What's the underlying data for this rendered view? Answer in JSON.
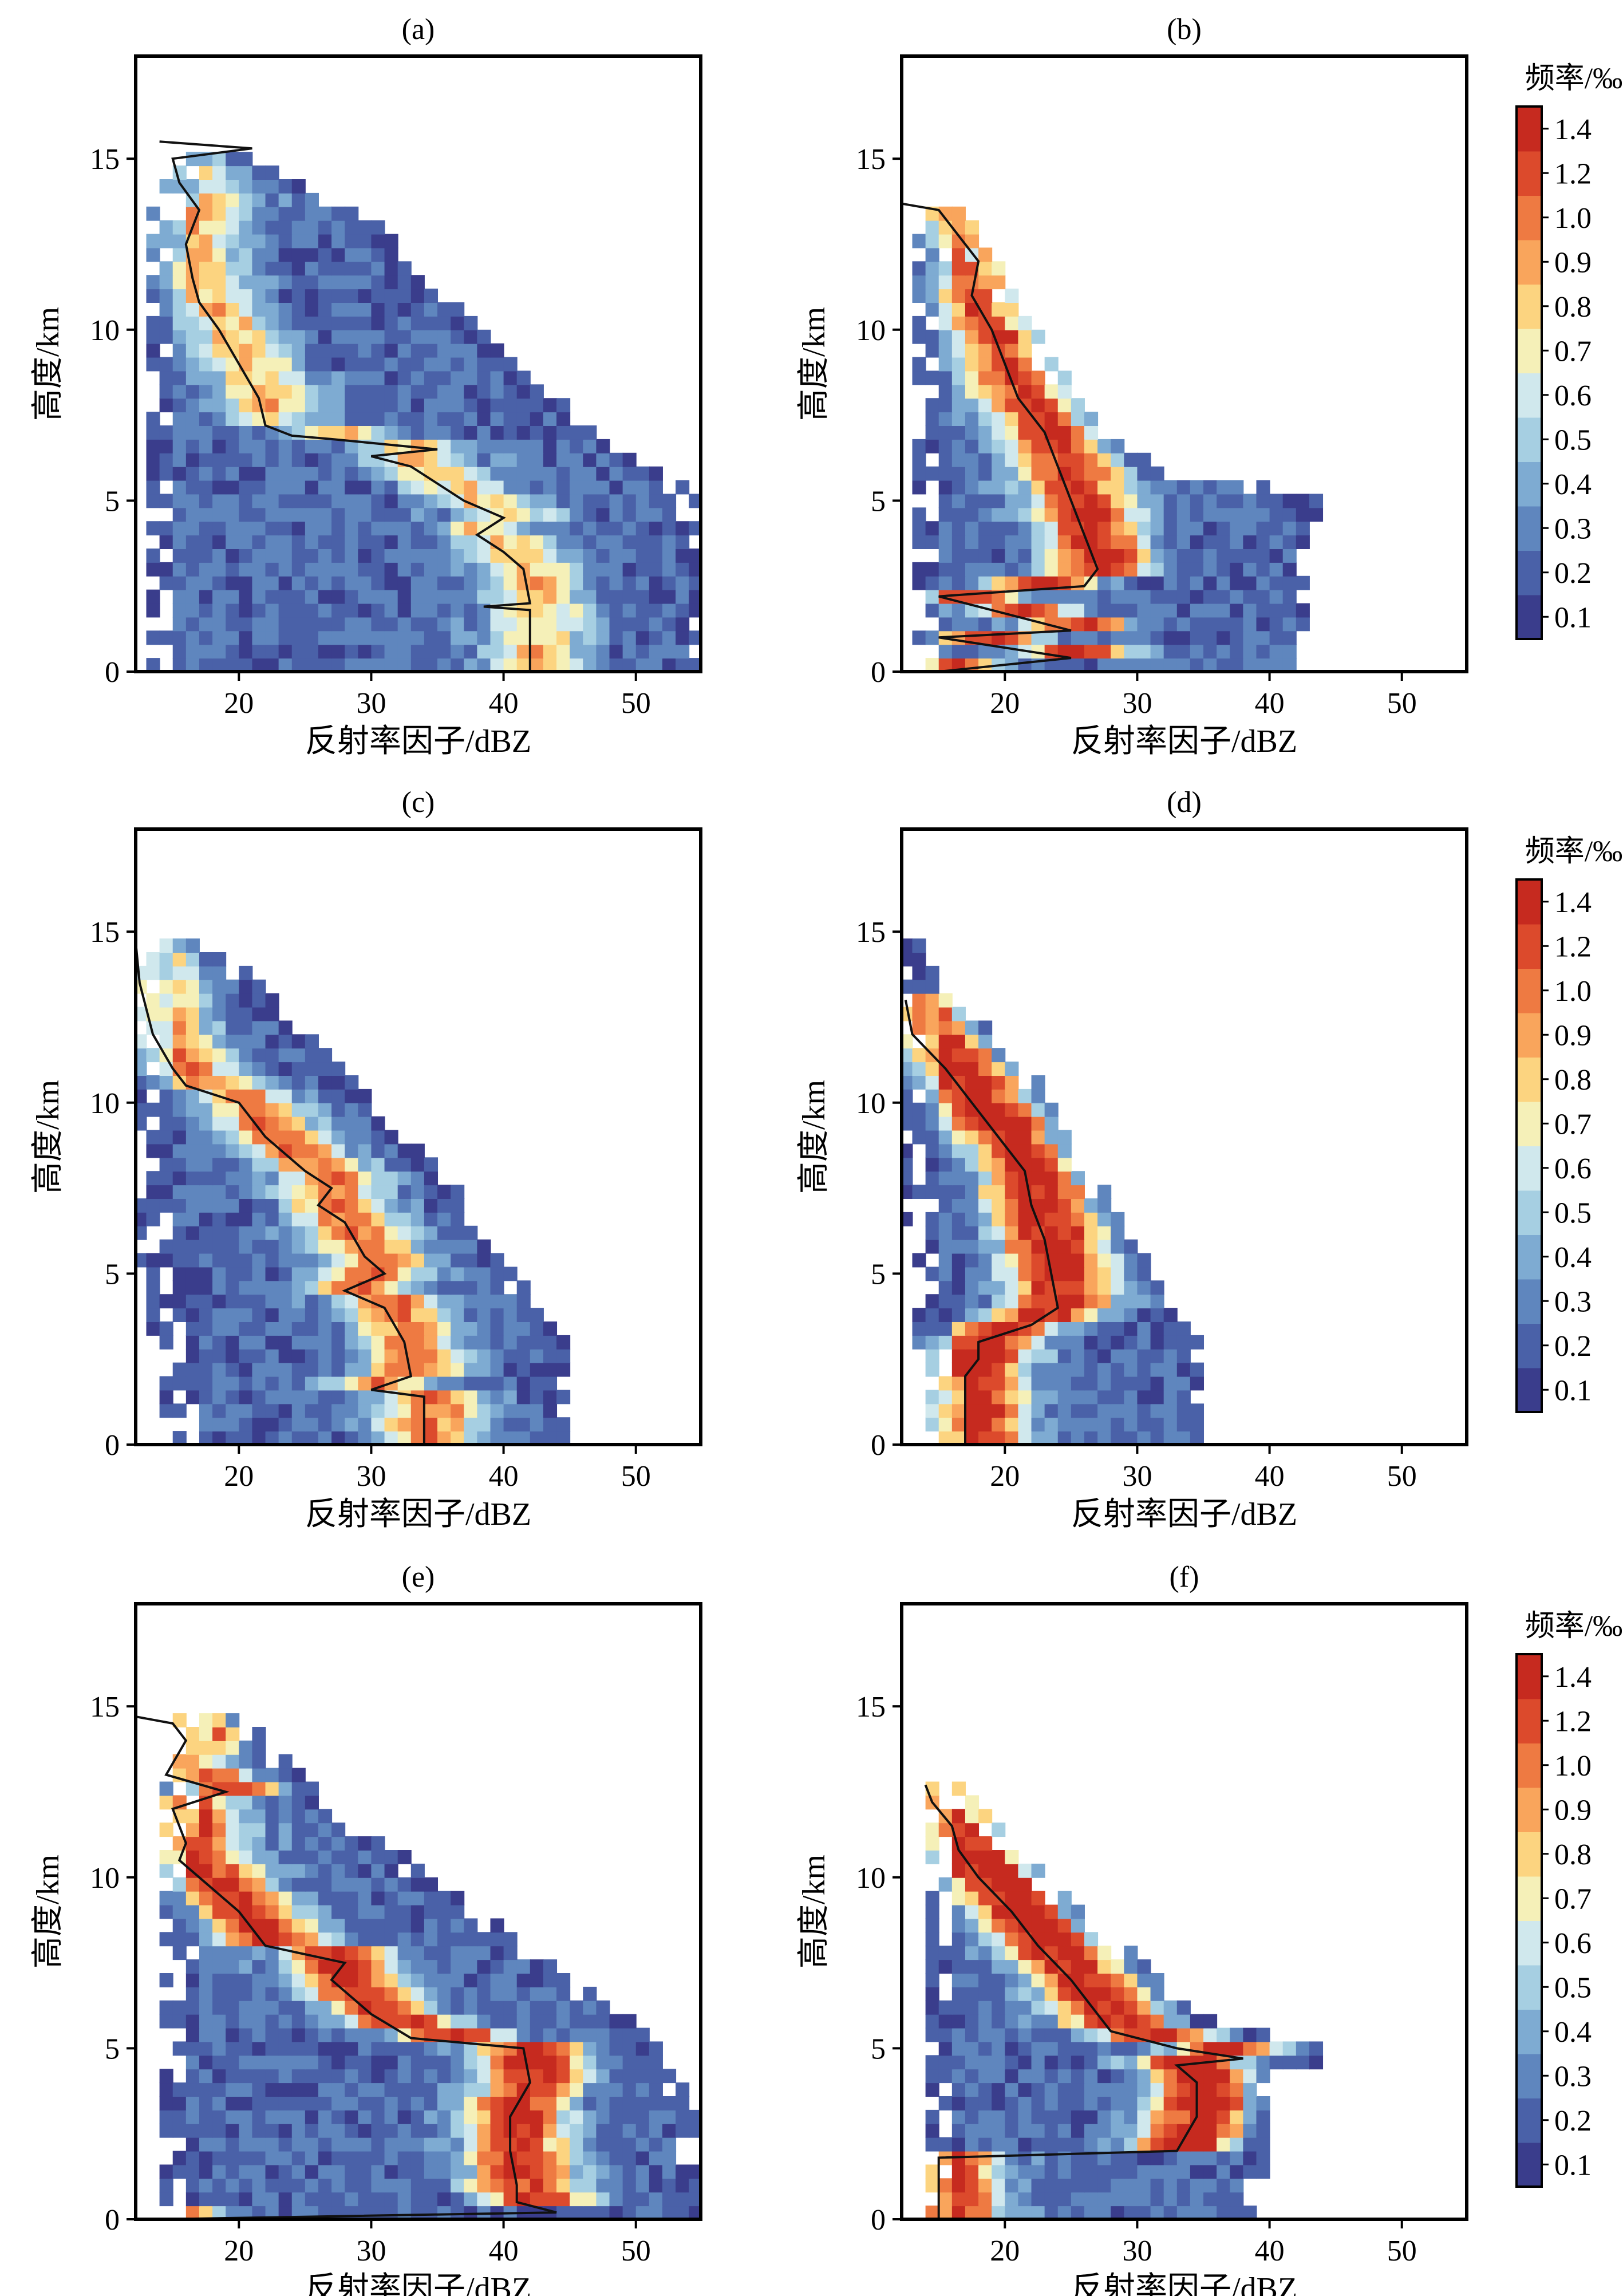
{
  "chart_data": {
    "type": "heatmap",
    "description_axes": {
      "xlabel": "反射率因子/dBZ",
      "ylabel": "高度/km"
    },
    "xlim": [
      12.2,
      54.9
    ],
    "ylim": [
      0,
      18
    ],
    "xticks": [
      20,
      30,
      40,
      50
    ],
    "yticks": [
      0,
      5,
      10,
      15
    ],
    "colorbar": {
      "label": "频率/‰",
      "ticks": [
        "1.4",
        "1.2",
        "1.0",
        "0.9",
        "0.8",
        "0.7",
        "0.6",
        "0.5",
        "0.4",
        "0.3",
        "0.2",
        "0.1"
      ],
      "levels": [
        0.1,
        0.2,
        0.3,
        0.4,
        0.5,
        0.6,
        0.7,
        0.8,
        0.9,
        1.0,
        1.2,
        1.4
      ],
      "colors": [
        "#3a3d8c",
        "#4a61a8",
        "#5f86be",
        "#7eabd2",
        "#a6cfe2",
        "#d0e8ed",
        "#f5f0b8",
        "#fcd480",
        "#f9a55c",
        "#ee7a42",
        "#dc4a2c",
        "#c62a1f"
      ]
    },
    "panels": [
      {
        "title": "(a)",
        "peak": 0.65,
        "median": [
          [
            0,
            42
          ],
          [
            1.8,
            42
          ],
          [
            1.9,
            38.5
          ],
          [
            2.0,
            42
          ],
          [
            3,
            41.5
          ],
          [
            3.5,
            40
          ],
          [
            4,
            38
          ],
          [
            4.5,
            40
          ],
          [
            5,
            37
          ],
          [
            5.5,
            35
          ],
          [
            6,
            33
          ],
          [
            6.3,
            30
          ],
          [
            6.5,
            35
          ],
          [
            6.8,
            27
          ],
          [
            6.9,
            24
          ],
          [
            7.2,
            22
          ],
          [
            8,
            21.5
          ],
          [
            9,
            20
          ],
          [
            10,
            18.5
          ],
          [
            10.8,
            17
          ],
          [
            11.5,
            16.5
          ],
          [
            12.5,
            16
          ],
          [
            13.5,
            17
          ],
          [
            14.3,
            15.5
          ],
          [
            15,
            15
          ],
          [
            15.3,
            21
          ],
          [
            15.5,
            14
          ]
        ],
        "envelope": [
          [
            0,
            13,
            55
          ],
          [
            3,
            13,
            55
          ],
          [
            5,
            13,
            54
          ],
          [
            6,
            13,
            50
          ],
          [
            8,
            13,
            43
          ],
          [
            10,
            13,
            38
          ],
          [
            12,
            13,
            33
          ],
          [
            13.5,
            14,
            28
          ],
          [
            14.5,
            15,
            22
          ],
          [
            15,
            16,
            19
          ]
        ]
      },
      {
        "title": "(b)",
        "peak": 1.25,
        "median": [
          [
            0,
            15
          ],
          [
            0.4,
            25
          ],
          [
            1.0,
            15
          ],
          [
            1.2,
            25
          ],
          [
            2.2,
            15
          ],
          [
            2.5,
            26
          ],
          [
            3,
            27
          ],
          [
            4,
            26
          ],
          [
            5,
            25
          ],
          [
            6,
            24
          ],
          [
            7,
            23
          ],
          [
            8,
            21
          ],
          [
            9,
            20
          ],
          [
            10,
            19
          ],
          [
            11,
            17.5
          ],
          [
            12,
            18
          ],
          [
            13,
            16
          ],
          [
            13.5,
            15
          ],
          [
            13.7,
            12
          ]
        ],
        "envelope": [
          [
            0,
            13,
            43
          ],
          [
            3,
            13,
            43
          ],
          [
            5,
            13,
            44
          ],
          [
            5.5,
            13,
            32
          ],
          [
            7,
            13,
            27
          ],
          [
            9,
            13,
            23
          ],
          [
            11,
            13,
            20
          ],
          [
            12.5,
            14,
            18
          ],
          [
            13.4,
            15,
            17
          ]
        ]
      },
      {
        "title": "(c)",
        "peak": 0.9,
        "median": [
          [
            0,
            34
          ],
          [
            1.4,
            34
          ],
          [
            1.6,
            30
          ],
          [
            2,
            33
          ],
          [
            3,
            32.5
          ],
          [
            4,
            31
          ],
          [
            4.5,
            28
          ],
          [
            5,
            31
          ],
          [
            5.5,
            29.5
          ],
          [
            6.5,
            28
          ],
          [
            7,
            26
          ],
          [
            7.5,
            27
          ],
          [
            8,
            25
          ],
          [
            9,
            22
          ],
          [
            10,
            20
          ],
          [
            10.5,
            16
          ],
          [
            11,
            15
          ],
          [
            12,
            13.5
          ],
          [
            13.5,
            12.5
          ],
          [
            14.7,
            12.2
          ]
        ],
        "envelope": [
          [
            0,
            15,
            45
          ],
          [
            3,
            14,
            44
          ],
          [
            5,
            13,
            40
          ],
          [
            8,
            12.2,
            35
          ],
          [
            10,
            12.2,
            30
          ],
          [
            12,
            12.2,
            25
          ],
          [
            14,
            12.2,
            19
          ],
          [
            14.8,
            12.2,
            15
          ]
        ]
      },
      {
        "title": "(d)",
        "peak": 1.45,
        "median": [
          [
            0,
            17
          ],
          [
            2,
            17
          ],
          [
            2.5,
            18
          ],
          [
            3,
            18
          ],
          [
            3.5,
            22
          ],
          [
            4,
            24
          ],
          [
            5,
            23.5
          ],
          [
            6,
            23
          ],
          [
            7,
            22
          ],
          [
            8,
            21.5
          ],
          [
            9,
            19.5
          ],
          [
            10,
            17.5
          ],
          [
            11,
            15.5
          ],
          [
            12,
            13
          ],
          [
            13,
            12.5
          ]
        ],
        "envelope": [
          [
            0,
            15,
            35
          ],
          [
            2,
            14,
            35
          ],
          [
            4,
            13,
            33
          ],
          [
            6,
            13,
            29
          ],
          [
            8,
            12.2,
            26
          ],
          [
            10,
            12.2,
            23
          ],
          [
            12,
            12.2,
            19
          ],
          [
            13.5,
            12.2,
            15
          ],
          [
            14.5,
            12.2,
            13
          ]
        ]
      },
      {
        "title": "(e)",
        "peak": 1.3,
        "median": [
          [
            0,
            14
          ],
          [
            0.2,
            44
          ],
          [
            0.5,
            41
          ],
          [
            1,
            41
          ],
          [
            2,
            40.5
          ],
          [
            3,
            40.5
          ],
          [
            4,
            42
          ],
          [
            5,
            41.5
          ],
          [
            5.3,
            33
          ],
          [
            6,
            30
          ],
          [
            7,
            27
          ],
          [
            7.5,
            28
          ],
          [
            8,
            22
          ],
          [
            9,
            20
          ],
          [
            10,
            17
          ],
          [
            10.5,
            15.5
          ],
          [
            11,
            16
          ],
          [
            12,
            15
          ],
          [
            12.5,
            19
          ],
          [
            13,
            14.5
          ],
          [
            14,
            16
          ],
          [
            14.5,
            15
          ],
          [
            14.7,
            12.2
          ]
        ],
        "envelope": [
          [
            0,
            14,
            55
          ],
          [
            3,
            14,
            54
          ],
          [
            5,
            14,
            52
          ],
          [
            7,
            15,
            44
          ],
          [
            9,
            14,
            37
          ],
          [
            11,
            14,
            30
          ],
          [
            13,
            15,
            24
          ],
          [
            14.5,
            16,
            20
          ]
        ]
      },
      {
        "title": "(f)",
        "peak": 1.45,
        "median": [
          [
            0,
            15
          ],
          [
            1.8,
            15
          ],
          [
            2.0,
            33
          ],
          [
            3,
            34.5
          ],
          [
            4,
            34.5
          ],
          [
            4.5,
            33
          ],
          [
            4.7,
            38
          ],
          [
            5,
            33
          ],
          [
            5.5,
            28
          ],
          [
            6,
            27
          ],
          [
            7,
            25
          ],
          [
            8,
            22.5
          ],
          [
            9,
            20.5
          ],
          [
            10,
            18
          ],
          [
            10.8,
            16.5
          ],
          [
            11.5,
            16
          ],
          [
            12.2,
            14.5
          ],
          [
            12.7,
            14
          ]
        ],
        "envelope": [
          [
            0,
            14,
            39
          ],
          [
            4,
            14,
            40
          ],
          [
            4.7,
            14,
            46
          ],
          [
            5,
            14,
            42
          ],
          [
            5.5,
            14,
            36
          ],
          [
            7,
            14,
            31
          ],
          [
            9,
            14,
            25
          ],
          [
            11,
            14,
            20
          ],
          [
            12.5,
            14,
            16
          ]
        ]
      }
    ]
  }
}
